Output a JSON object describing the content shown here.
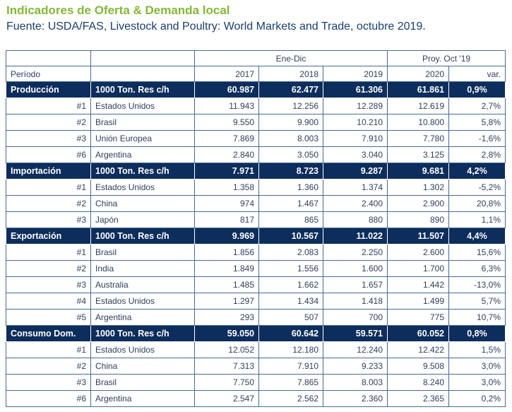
{
  "title": "Indicadores de Oferta & Demanda local",
  "subtitle": "Fuente: USDA/FAS, Livestock and Poultry: World Markets and Trade, octubre 2019.",
  "header": {
    "group_enedic": "Ene-Dic",
    "group_proy": "Proy. Oct '19",
    "periodo": "Período",
    "years": [
      "2017",
      "2018",
      "2019",
      "2020"
    ],
    "var": "var."
  },
  "sections": [
    {
      "name": "Producción",
      "unit": "1000 Ton. Res c/h",
      "values": [
        "60.987",
        "62.477",
        "61.306",
        "61.861",
        "0,9%"
      ],
      "rows": [
        {
          "rank": "#1",
          "country": "Estados Unidos",
          "values": [
            "11.943",
            "12.256",
            "12.289",
            "12.619",
            "2,7%"
          ]
        },
        {
          "rank": "#2",
          "country": "Brasil",
          "values": [
            "9.550",
            "9.900",
            "10.210",
            "10.800",
            "5,8%"
          ]
        },
        {
          "rank": "#3",
          "country": "Unión Europea",
          "values": [
            "7.869",
            "8.003",
            "7.910",
            "7.780",
            "-1,6%"
          ]
        },
        {
          "rank": "#6",
          "country": "Argentina",
          "values": [
            "2.840",
            "3.050",
            "3.040",
            "3.125",
            "2,8%"
          ]
        }
      ]
    },
    {
      "name": "Importación",
      "unit": "1000 Ton. Res c/h",
      "values": [
        "7.971",
        "8.723",
        "9.287",
        "9.681",
        "4,2%"
      ],
      "rows": [
        {
          "rank": "#1",
          "country": "Estados Unidos",
          "values": [
            "1.358",
            "1.360",
            "1.374",
            "1.302",
            "-5,2%"
          ]
        },
        {
          "rank": "#2",
          "country": "China",
          "values": [
            "974",
            "1.467",
            "2.400",
            "2.900",
            "20,8%"
          ]
        },
        {
          "rank": "#3",
          "country": "Japón",
          "values": [
            "817",
            "865",
            "880",
            "890",
            "1,1%"
          ]
        }
      ]
    },
    {
      "name": "Exportación",
      "unit": "1000 Ton. Res c/h",
      "values": [
        "9.969",
        "10.567",
        "11.022",
        "11.507",
        "4,4%"
      ],
      "rows": [
        {
          "rank": "#1",
          "country": "Brasil",
          "values": [
            "1.856",
            "2.083",
            "2.250",
            "2.600",
            "15,6%"
          ]
        },
        {
          "rank": "#2",
          "country": "India",
          "values": [
            "1.849",
            "1.556",
            "1.600",
            "1.700",
            "6,3%"
          ]
        },
        {
          "rank": "#3",
          "country": "Australia",
          "values": [
            "1.485",
            "1.662",
            "1.657",
            "1.442",
            "-13,0%"
          ]
        },
        {
          "rank": "#4",
          "country": "Estados Unidos",
          "values": [
            "1.297",
            "1.434",
            "1.418",
            "1.499",
            "5,7%"
          ]
        },
        {
          "rank": "#5",
          "country": "Argentina",
          "values": [
            "293",
            "507",
            "700",
            "775",
            "10,7%"
          ]
        }
      ]
    },
    {
      "name": "Consumo Dom.",
      "unit": "1000 Ton. Res c/h",
      "values": [
        "59.050",
        "60.642",
        "59.571",
        "60.052",
        "0,8%"
      ],
      "rows": [
        {
          "rank": "#1",
          "country": "Estados Unidos",
          "values": [
            "12.052",
            "12.180",
            "12.240",
            "12.422",
            "1,5%"
          ]
        },
        {
          "rank": "#2",
          "country": "China",
          "values": [
            "7.313",
            "7.910",
            "9.233",
            "9.508",
            "3,0%"
          ]
        },
        {
          "rank": "#3",
          "country": "Brasil",
          "values": [
            "7.750",
            "7.865",
            "8.003",
            "8.240",
            "3,0%"
          ]
        },
        {
          "rank": "#6",
          "country": "Argentina",
          "values": [
            "2.547",
            "2.562",
            "2.360",
            "2.365",
            "0,2%"
          ]
        }
      ]
    }
  ],
  "colors": {
    "title": "#86b63a",
    "subtitle": "#1b3e6e",
    "section_bg": "#0d2d5c",
    "border": "#4a6a94"
  }
}
